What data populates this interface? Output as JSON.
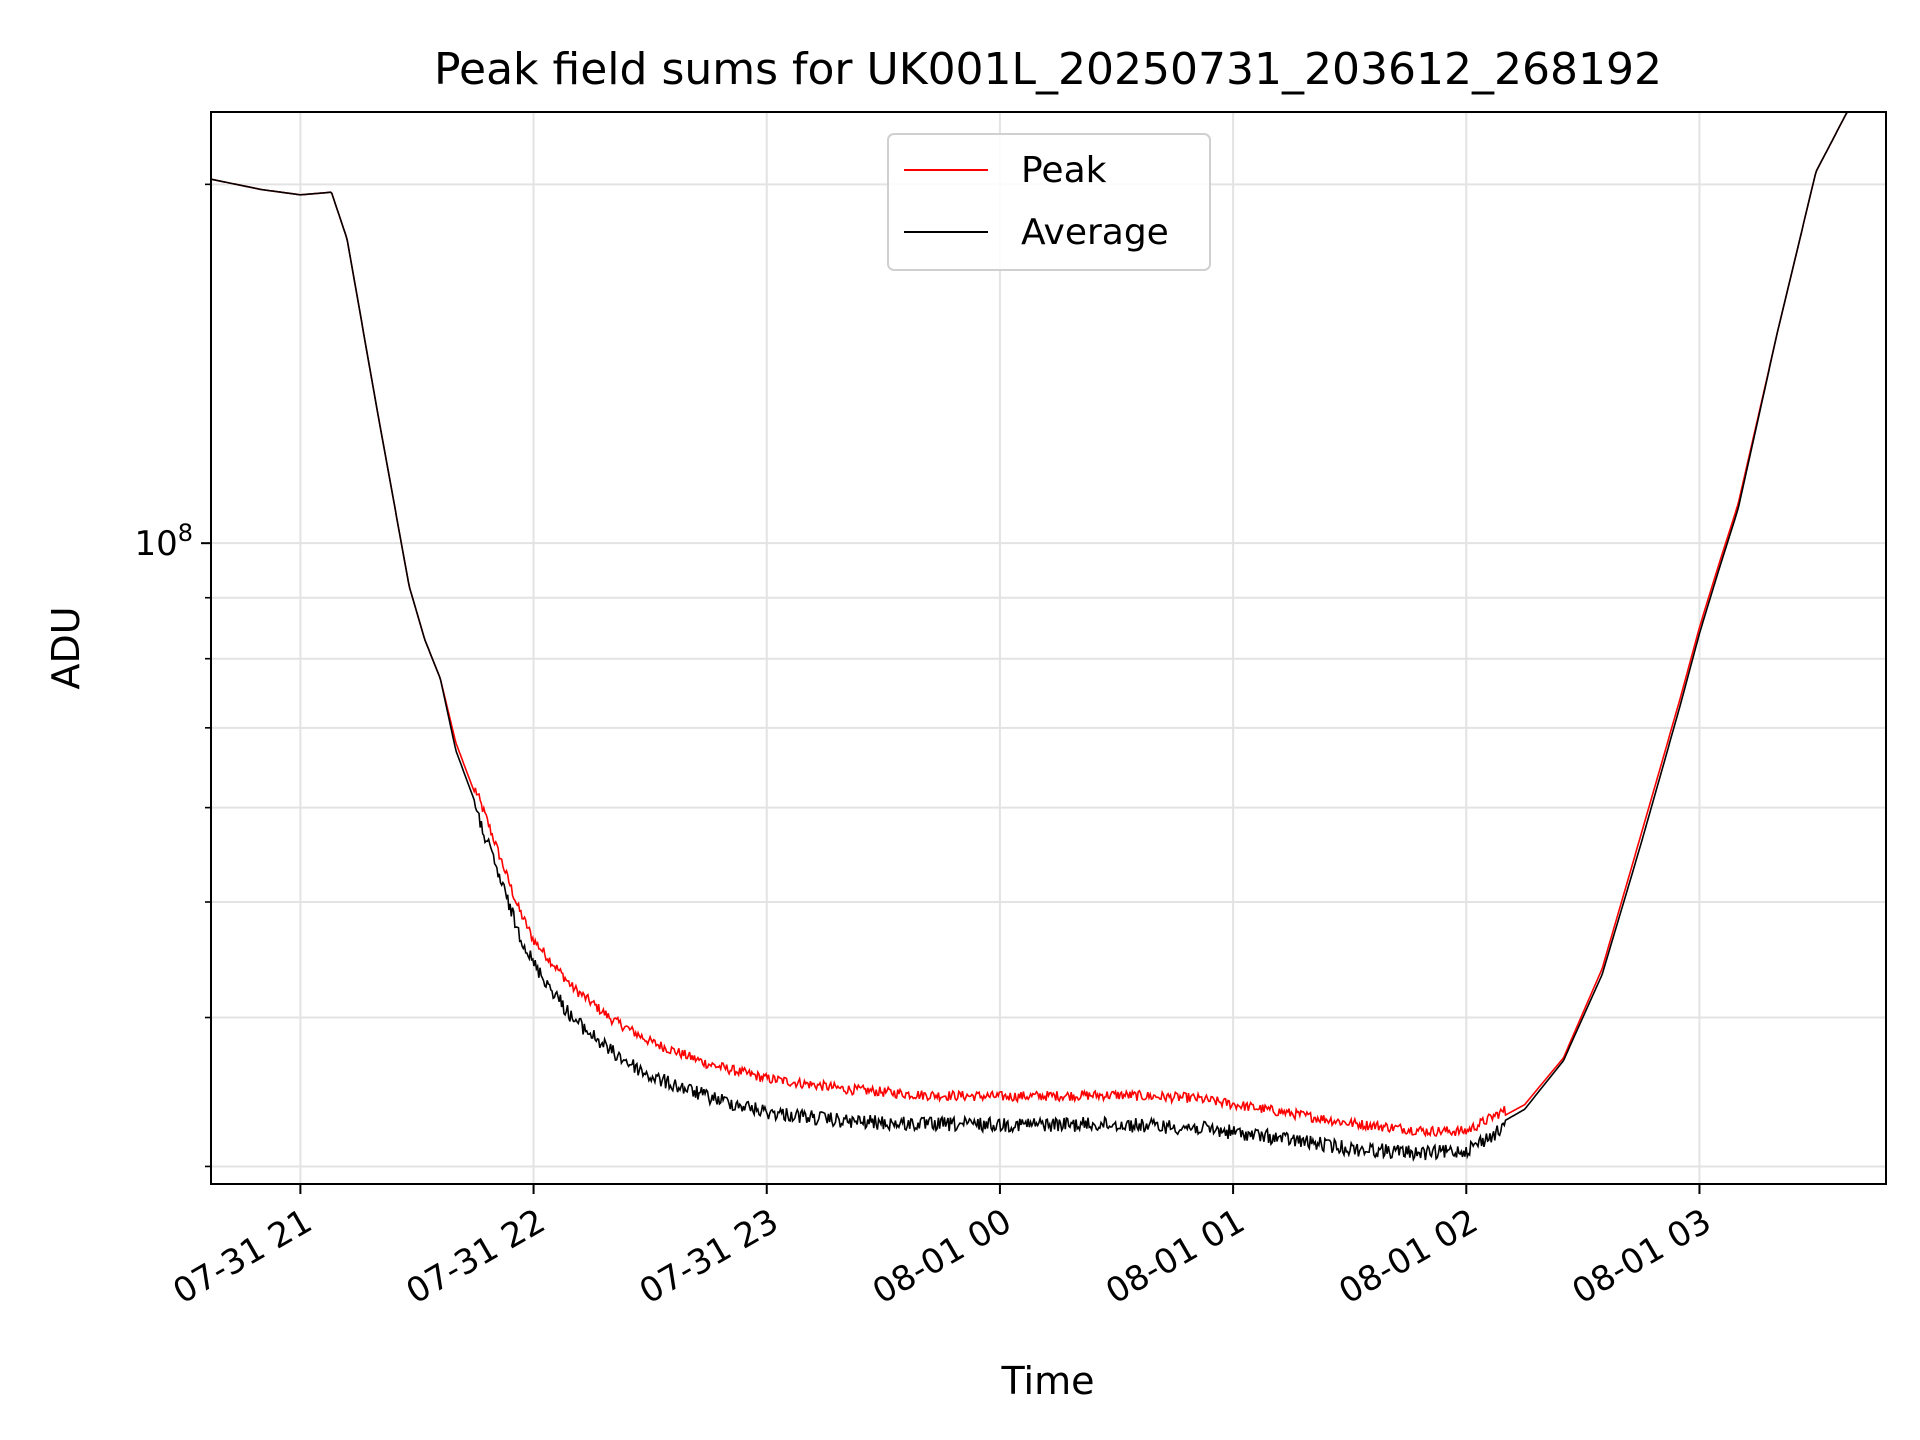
{
  "chart_data": {
    "type": "line",
    "title": "Peak field sums for UK001L_20250731_203612_268192",
    "xlabel": "Time",
    "ylabel": "ADU",
    "y_scale": "log",
    "grid": true,
    "legend_position": "upper center",
    "x_range": [
      "2025-07-31T20:37",
      "2025-08-01T03:48"
    ],
    "y_range": [
      29000000.0,
      230000000.0
    ],
    "x_ticks": [
      {
        "t": "2025-07-31T21:00",
        "label": "07-31 21"
      },
      {
        "t": "2025-07-31T22:00",
        "label": "07-31 22"
      },
      {
        "t": "2025-07-31T23:00",
        "label": "07-31 23"
      },
      {
        "t": "2025-08-01T00:00",
        "label": "08-01 00"
      },
      {
        "t": "2025-08-01T01:00",
        "label": "08-01 01"
      },
      {
        "t": "2025-08-01T02:00",
        "label": "08-01 02"
      },
      {
        "t": "2025-08-01T03:00",
        "label": "08-01 03"
      }
    ],
    "y_major_tick": {
      "value": 100000000,
      "base": "10",
      "exp": "8"
    },
    "series": [
      {
        "name": "Peak",
        "color": "#ff0000",
        "noise": 0.02,
        "points": [
          [
            "2025-07-31T20:37",
            202000000.0
          ],
          [
            "2025-07-31T20:50",
            198000000.0
          ],
          [
            "2025-07-31T21:00",
            196000000.0
          ],
          [
            "2025-07-31T21:08",
            197000000.0
          ],
          [
            "2025-07-31T21:12",
            180000000.0
          ],
          [
            "2025-07-31T21:20",
            128000000.0
          ],
          [
            "2025-07-31T21:28",
            92000000.0
          ],
          [
            "2025-07-31T21:32",
            83000000.0
          ],
          [
            "2025-07-31T21:36",
            77000000.0
          ],
          [
            "2025-07-31T21:40",
            68000000.0
          ],
          [
            "2025-07-31T21:48",
            58000000.0
          ],
          [
            "2025-07-31T21:56",
            49000000.0
          ],
          [
            "2025-07-31T22:00",
            46000000.0
          ],
          [
            "2025-07-31T22:10",
            42000000.0
          ],
          [
            "2025-07-31T22:20",
            39500000.0
          ],
          [
            "2025-07-31T22:30",
            37800000.0
          ],
          [
            "2025-07-31T22:45",
            36200000.0
          ],
          [
            "2025-07-31T23:00",
            35200000.0
          ],
          [
            "2025-07-31T23:20",
            34500000.0
          ],
          [
            "2025-07-31T23:40",
            34100000.0
          ],
          [
            "2025-08-01T00:00",
            34000000.0
          ],
          [
            "2025-08-01T00:30",
            34100000.0
          ],
          [
            "2025-08-01T00:50",
            33900000.0
          ],
          [
            "2025-08-01T01:10",
            33100000.0
          ],
          [
            "2025-08-01T01:30",
            32300000.0
          ],
          [
            "2025-08-01T01:50",
            31800000.0
          ],
          [
            "2025-08-01T02:00",
            31800000.0
          ],
          [
            "2025-08-01T02:15",
            33800000.0
          ],
          [
            "2025-08-01T02:25",
            37000000.0
          ],
          [
            "2025-08-01T02:35",
            44000000.0
          ],
          [
            "2025-08-01T02:45",
            57000000.0
          ],
          [
            "2025-08-01T02:55",
            74000000.0
          ],
          [
            "2025-08-01T03:00",
            85000000.0
          ],
          [
            "2025-08-01T03:05",
            96000000.0
          ],
          [
            "2025-08-01T03:10",
            108000000.0
          ],
          [
            "2025-08-01T03:20",
            150000000.0
          ],
          [
            "2025-08-01T03:30",
            205000000.0
          ],
          [
            "2025-08-01T03:38",
            230000000.0
          ],
          [
            "2025-08-01T03:48",
            230000000.0
          ]
        ]
      },
      {
        "name": "Average",
        "color": "#000000",
        "noise": 0.028,
        "points": [
          [
            "2025-07-31T20:37",
            202000000.0
          ],
          [
            "2025-07-31T20:50",
            198000000.0
          ],
          [
            "2025-07-31T21:00",
            196000000.0
          ],
          [
            "2025-07-31T21:08",
            197000000.0
          ],
          [
            "2025-07-31T21:12",
            180000000.0
          ],
          [
            "2025-07-31T21:20",
            128000000.0
          ],
          [
            "2025-07-31T21:28",
            92000000.0
          ],
          [
            "2025-07-31T21:32",
            83000000.0
          ],
          [
            "2025-07-31T21:36",
            77000000.0
          ],
          [
            "2025-07-31T21:40",
            67000000.0
          ],
          [
            "2025-07-31T21:48",
            57000000.0
          ],
          [
            "2025-07-31T21:56",
            48000000.0
          ],
          [
            "2025-07-31T22:00",
            45000000.0
          ],
          [
            "2025-07-31T22:10",
            40500000.0
          ],
          [
            "2025-07-31T22:20",
            38000000.0
          ],
          [
            "2025-07-31T22:30",
            36200000.0
          ],
          [
            "2025-07-31T22:45",
            34800000.0
          ],
          [
            "2025-07-31T23:00",
            33800000.0
          ],
          [
            "2025-07-31T23:20",
            33200000.0
          ],
          [
            "2025-07-31T23:40",
            33000000.0
          ],
          [
            "2025-08-01T00:00",
            33000000.0
          ],
          [
            "2025-08-01T00:30",
            33000000.0
          ],
          [
            "2025-08-01T00:50",
            32800000.0
          ],
          [
            "2025-08-01T01:10",
            32200000.0
          ],
          [
            "2025-08-01T01:30",
            31500000.0
          ],
          [
            "2025-08-01T01:50",
            31200000.0
          ],
          [
            "2025-08-01T02:00",
            31400000.0
          ],
          [
            "2025-08-01T02:15",
            33500000.0
          ],
          [
            "2025-08-01T02:25",
            36800000.0
          ],
          [
            "2025-08-01T02:35",
            43500000.0
          ],
          [
            "2025-08-01T02:45",
            56000000.0
          ],
          [
            "2025-08-01T02:55",
            73000000.0
          ],
          [
            "2025-08-01T03:00",
            84000000.0
          ],
          [
            "2025-08-01T03:05",
            95000000.0
          ],
          [
            "2025-08-01T03:10",
            107000000.0
          ],
          [
            "2025-08-01T03:20",
            150000000.0
          ],
          [
            "2025-08-01T03:30",
            205000000.0
          ],
          [
            "2025-08-01T03:38",
            230000000.0
          ],
          [
            "2025-08-01T03:48",
            230000000.0
          ]
        ]
      }
    ]
  }
}
